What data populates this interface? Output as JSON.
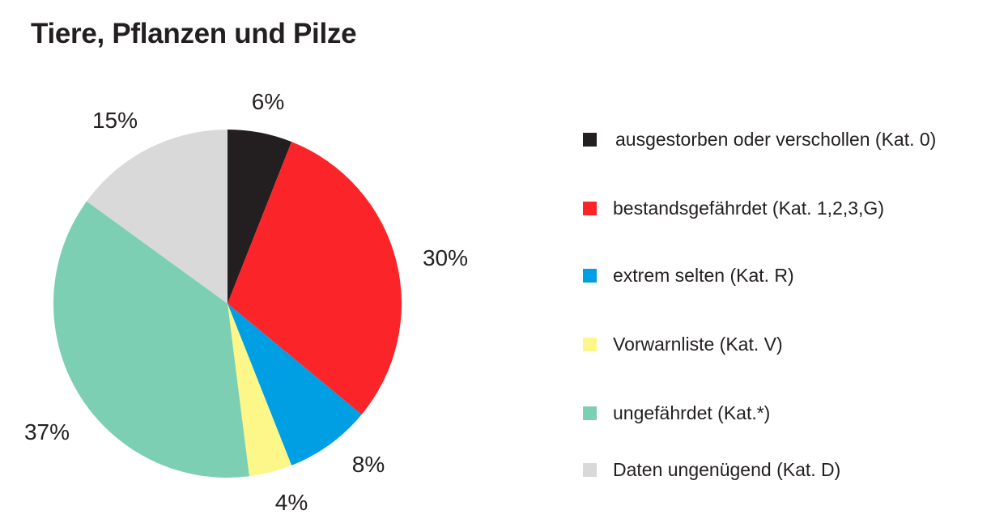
{
  "chart_data": {
    "type": "pie",
    "title": "Tiere, Pflanzen und Pilze",
    "legend_position": "right",
    "slices": [
      {
        "name": "ausgestorben oder verschollen (Kat. 0)",
        "value": 6,
        "label": "6%",
        "color": "#231f20"
      },
      {
        "name": "bestandsgefährdet (Kat. 1,2,3,G)",
        "value": 30,
        "label": "30%",
        "color": "#fb2529"
      },
      {
        "name": "extrem selten (Kat. R)",
        "value": 8,
        "label": "8%",
        "color": "#009fe3"
      },
      {
        "name": "Vorwarnliste (Kat. V)",
        "value": 4,
        "label": "4%",
        "color": "#fdf78a"
      },
      {
        "name": "ungefährdet (Kat.*)",
        "value": 37,
        "label": "37%",
        "color": "#7ccfb2"
      },
      {
        "name": "Daten ungenügend (Kat. D)",
        "value": 15,
        "label": "15%",
        "color": "#d9d9d9"
      }
    ]
  }
}
